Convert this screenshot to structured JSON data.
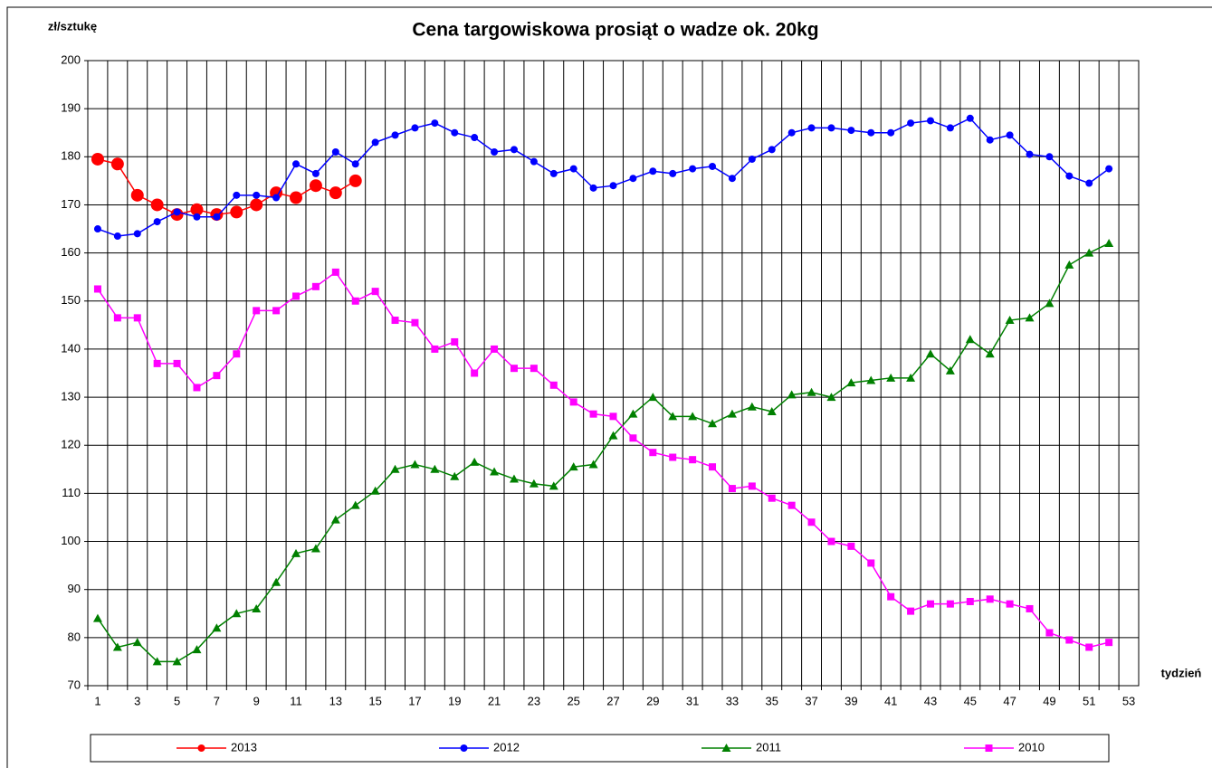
{
  "chart_data": {
    "type": "line",
    "title": "Cena targowiskowa prosiąt o wadze ok. 20kg",
    "y_label": "zł/sztukę",
    "x_label": "tydzień",
    "categories": [
      1,
      null,
      3,
      null,
      5,
      null,
      7,
      null,
      9,
      null,
      11,
      null,
      13,
      null,
      15,
      null,
      17,
      null,
      19,
      null,
      21,
      null,
      23,
      null,
      25,
      null,
      27,
      null,
      29,
      null,
      31,
      null,
      33,
      null,
      35,
      null,
      37,
      null,
      39,
      null,
      41,
      null,
      43,
      null,
      45,
      null,
      47,
      null,
      49,
      null,
      51,
      null,
      53
    ],
    "ylim": [
      70,
      200
    ],
    "yticks": [
      70,
      80,
      90,
      100,
      110,
      120,
      130,
      140,
      150,
      160,
      170,
      180,
      190,
      200
    ],
    "grid": true,
    "legend": "bottom",
    "series": [
      {
        "name": "2013",
        "color": "#ff0000",
        "marker": "circle-large",
        "values": [
          179.5,
          178.5,
          172,
          170,
          168,
          169,
          168,
          168.5,
          170,
          172.5,
          171.5,
          174,
          172.5,
          175,
          null,
          null,
          null,
          null,
          null,
          null,
          null,
          null,
          null,
          null,
          null,
          null,
          null,
          null,
          null,
          null,
          null,
          null,
          null,
          null,
          null,
          null,
          null,
          null,
          null,
          null,
          null,
          null,
          null,
          null,
          null,
          null,
          null,
          null,
          null,
          null,
          null,
          null,
          null
        ]
      },
      {
        "name": "2012",
        "color": "#0000ff",
        "marker": "circle",
        "values": [
          165,
          163.5,
          164,
          166.5,
          168.5,
          167.5,
          167.5,
          172,
          172,
          171.5,
          178.5,
          176.5,
          181,
          178.5,
          183,
          184.5,
          186,
          187,
          185,
          184,
          181,
          181.5,
          179,
          176.5,
          177.5,
          173.5,
          174,
          175.5,
          177,
          176.5,
          177.5,
          178,
          175.5,
          179.5,
          181.5,
          185,
          186,
          186,
          185.5,
          185,
          185,
          187,
          187.5,
          186,
          188,
          183.5,
          184.5,
          180.5,
          180,
          176,
          174.5,
          177.5,
          null
        ]
      },
      {
        "name": "2011",
        "color": "#008000",
        "marker": "triangle",
        "values": [
          84,
          78,
          79,
          75,
          75,
          77.5,
          82,
          85,
          86,
          91.5,
          97.5,
          98.5,
          104.5,
          107.5,
          110.5,
          115,
          116,
          115,
          113.5,
          116.5,
          114.5,
          113,
          112,
          111.5,
          115.5,
          116,
          122,
          126.5,
          130,
          126,
          126,
          124.5,
          126.5,
          128,
          127,
          130.5,
          131,
          130,
          133,
          133.5,
          134,
          134,
          139,
          135.5,
          142,
          139,
          146,
          146.5,
          149.5,
          157.5,
          160,
          162,
          null
        ]
      },
      {
        "name": "2010",
        "color": "#ff00ff",
        "marker": "square",
        "values": [
          152.5,
          146.5,
          146.5,
          137,
          137,
          132,
          134.5,
          139,
          148,
          148,
          151,
          153,
          156,
          150,
          152,
          146,
          145.5,
          140,
          141.5,
          135,
          140,
          136,
          136,
          132.5,
          129,
          126.5,
          126,
          121.5,
          118.5,
          117.5,
          117,
          115.5,
          111,
          111.5,
          109,
          107.5,
          104,
          100,
          99,
          95.5,
          88.5,
          85.5,
          87,
          87,
          87.5,
          88,
          87,
          86,
          81,
          79.5,
          78,
          79,
          null
        ]
      }
    ]
  }
}
